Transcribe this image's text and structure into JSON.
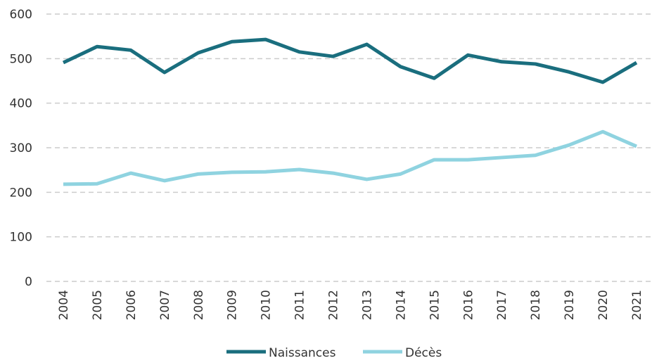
{
  "chart_data": {
    "type": "line",
    "x": [
      "2004",
      "2005",
      "2006",
      "2007",
      "2008",
      "2009",
      "2010",
      "2011",
      "2012",
      "2013",
      "2014",
      "2015",
      "2016",
      "2017",
      "2018",
      "2019",
      "2020",
      "2021"
    ],
    "series": [
      {
        "name": "Naissances",
        "color": "#1a6e7e",
        "values": [
          491,
          527,
          519,
          469,
          513,
          538,
          543,
          515,
          505,
          532,
          482,
          456,
          508,
          493,
          488,
          470,
          447,
          491
        ]
      },
      {
        "name": "Décès",
        "color": "#8fd3e0",
        "values": [
          218,
          219,
          243,
          226,
          241,
          245,
          246,
          251,
          243,
          229,
          241,
          273,
          273,
          278,
          283,
          306,
          336,
          303
        ]
      }
    ],
    "ylim": [
      0,
      600
    ],
    "yticks": [
      0,
      100,
      200,
      300,
      400,
      500,
      600
    ],
    "grid": true,
    "legend": "bottom"
  }
}
